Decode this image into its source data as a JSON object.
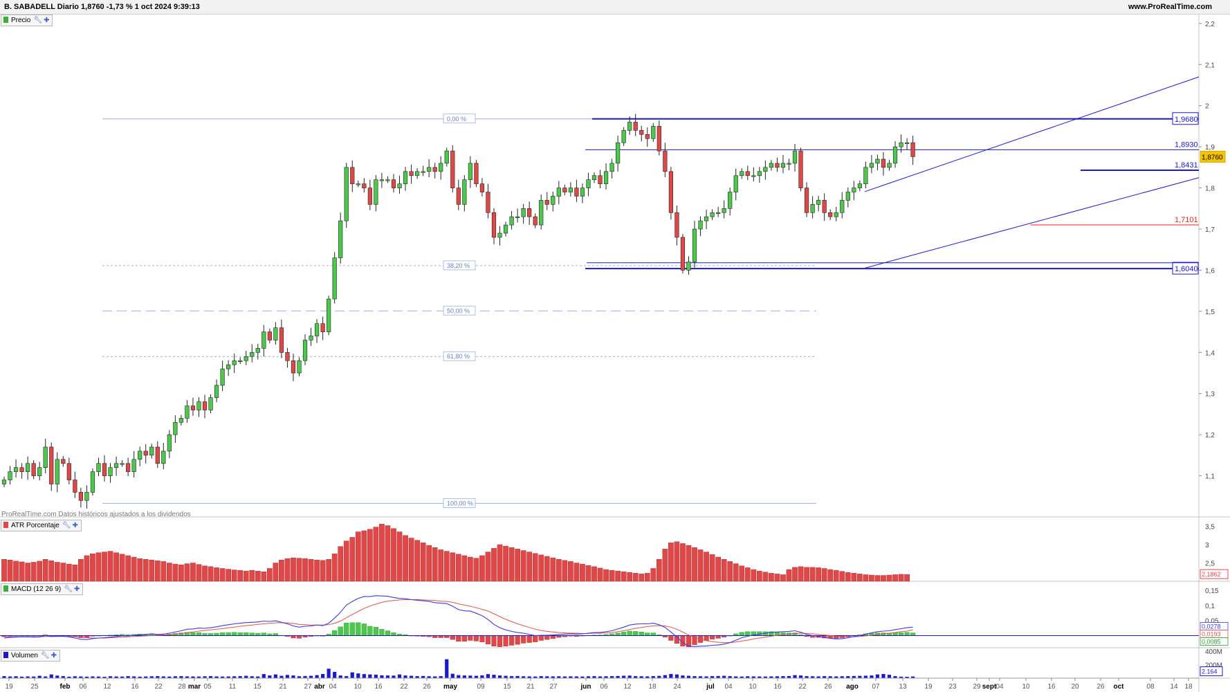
{
  "header": {
    "title": "B. SABADELL Diario 1,8760 -1,73 % 1 oct 2024 9:39:13",
    "site": "www.ProRealTime.com"
  },
  "panels": {
    "price_label": "Precio",
    "atr_label": "ATR Porcentaje",
    "macd_label": "MACD (12 26 9)",
    "volume_label": "Volumen"
  },
  "footnote": "ProRealTime.com  Datos históricos ajustados a los dividendos",
  "colors": {
    "up": "#4cc94c",
    "down": "#e04848",
    "line_blue": "#1a1acc",
    "level_red": "#ee2222",
    "fib": "#9ab0dd",
    "macd_line": "#3a3ae0",
    "signal_line": "#e05050",
    "volume": "#1a1acc"
  },
  "chart_data": [
    {
      "type": "candlestick",
      "title": "B. SABADELL Diario",
      "last": "1,8760",
      "ylim": [
        1.0,
        2.22
      ],
      "yticks": [
        "2,2",
        "2,1",
        "2",
        "1,9",
        "1,8",
        "1,7",
        "1,6",
        "1,5",
        "1,4",
        "1,3",
        "1,2",
        "1,1"
      ],
      "ytick_values": [
        2.2,
        2.1,
        2.0,
        1.9,
        1.8,
        1.7,
        1.6,
        1.5,
        1.4,
        1.3,
        1.2,
        1.1
      ],
      "xticks": [
        "19",
        "25",
        "feb",
        "06",
        "12",
        "16",
        "22",
        "28",
        "mar",
        "05",
        "11",
        "15",
        "21",
        "27",
        "abr",
        "04",
        "10",
        "16",
        "22",
        "26",
        "may",
        "09",
        "15",
        "21",
        "27",
        "jun",
        "06",
        "12",
        "18",
        "24",
        "jul",
        "04",
        "10",
        "16",
        "22",
        "26",
        "ago",
        "07",
        "13",
        "19",
        "23",
        "29",
        "sept",
        "04",
        "10",
        "16",
        "20",
        "26",
        "oct",
        "08",
        "14",
        "18"
      ],
      "close": [
        1.09,
        1.11,
        1.12,
        1.11,
        1.13,
        1.1,
        1.12,
        1.17,
        1.08,
        1.14,
        1.13,
        1.09,
        1.06,
        1.04,
        1.06,
        1.11,
        1.13,
        1.1,
        1.12,
        1.13,
        1.13,
        1.11,
        1.14,
        1.16,
        1.15,
        1.17,
        1.13,
        1.16,
        1.2,
        1.23,
        1.24,
        1.27,
        1.26,
        1.28,
        1.26,
        1.29,
        1.32,
        1.36,
        1.37,
        1.38,
        1.38,
        1.39,
        1.4,
        1.41,
        1.45,
        1.43,
        1.46,
        1.4,
        1.38,
        1.35,
        1.38,
        1.43,
        1.44,
        1.47,
        1.45,
        1.53,
        1.63,
        1.72,
        1.85,
        1.81,
        1.81,
        1.8,
        1.76,
        1.82,
        1.82,
        1.82,
        1.8,
        1.81,
        1.84,
        1.83,
        1.84,
        1.84,
        1.85,
        1.84,
        1.86,
        1.89,
        1.8,
        1.76,
        1.82,
        1.86,
        1.81,
        1.79,
        1.74,
        1.68,
        1.69,
        1.71,
        1.73,
        1.73,
        1.75,
        1.73,
        1.71,
        1.77,
        1.76,
        1.78,
        1.8,
        1.79,
        1.8,
        1.78,
        1.8,
        1.82,
        1.83,
        1.81,
        1.84,
        1.86,
        1.91,
        1.94,
        1.96,
        1.94,
        1.93,
        1.92,
        1.95,
        1.89,
        1.84,
        1.74,
        1.68,
        1.6,
        1.62,
        1.7,
        1.72,
        1.73,
        1.74,
        1.74,
        1.75,
        1.79,
        1.83,
        1.84,
        1.83,
        1.83,
        1.84,
        1.85,
        1.86,
        1.85,
        1.86,
        1.86,
        1.89,
        1.8,
        1.74,
        1.76,
        1.77,
        1.74,
        1.73,
        1.74,
        1.77,
        1.79,
        1.8,
        1.81,
        1.85,
        1.86,
        1.87,
        1.85,
        1.86,
        1.9,
        1.91,
        1.91,
        1.876
      ],
      "price_levels": [
        {
          "label": "1,9680",
          "value": 1.968
        },
        {
          "label": "1,8930",
          "value": 1.893
        },
        {
          "label": "1,8431",
          "value": 1.8431
        },
        {
          "label": "1,7101",
          "value": 1.7101
        },
        {
          "label": "1,6040",
          "value": 1.604
        }
      ],
      "fibonacci": [
        {
          "label": "0,00 %",
          "value": 1.968
        },
        {
          "label": "38,20 %",
          "value": 1.611
        },
        {
          "label": "50,00 %",
          "value": 1.501
        },
        {
          "label": "61,80 %",
          "value": 1.39
        },
        {
          "label": "100,00 %",
          "value": 1.033
        }
      ]
    },
    {
      "type": "bar",
      "title": "ATR Porcentaje",
      "last": "2,1862",
      "ylim": [
        2.0,
        3.7
      ],
      "yticks": [
        "3,5",
        "3",
        "2,5"
      ],
      "ytick_values": [
        3.5,
        3.0,
        2.5
      ],
      "values": [
        2.6,
        2.58,
        2.55,
        2.53,
        2.5,
        2.52,
        2.55,
        2.6,
        2.56,
        2.52,
        2.5,
        2.47,
        2.45,
        2.6,
        2.7,
        2.75,
        2.78,
        2.8,
        2.82,
        2.78,
        2.74,
        2.7,
        2.66,
        2.62,
        2.6,
        2.58,
        2.56,
        2.54,
        2.5,
        2.47,
        2.45,
        2.48,
        2.5,
        2.46,
        2.42,
        2.4,
        2.37,
        2.35,
        2.33,
        2.31,
        2.3,
        2.28,
        2.3,
        2.28,
        2.26,
        2.35,
        2.5,
        2.58,
        2.62,
        2.64,
        2.63,
        2.62,
        2.6,
        2.58,
        2.57,
        2.6,
        2.75,
        2.95,
        3.1,
        3.2,
        3.35,
        3.38,
        3.42,
        3.48,
        3.56,
        3.52,
        3.44,
        3.35,
        3.25,
        3.18,
        3.12,
        3.05,
        2.98,
        2.92,
        2.86,
        2.82,
        2.78,
        2.74,
        2.7,
        2.66,
        2.63,
        2.7,
        2.8,
        2.9,
        3.0,
        2.96,
        2.92,
        2.88,
        2.84,
        2.8,
        2.76,
        2.72,
        2.68,
        2.64,
        2.6,
        2.57,
        2.54,
        2.5,
        2.47,
        2.43,
        2.4,
        2.36,
        2.32,
        2.3,
        2.28,
        2.26,
        2.24,
        2.22,
        2.2,
        2.22,
        2.35,
        2.6,
        2.88,
        3.05,
        3.08,
        3.03,
        2.98,
        2.92,
        2.86,
        2.8,
        2.73,
        2.66,
        2.6,
        2.54,
        2.48,
        2.42,
        2.37,
        2.32,
        2.28,
        2.25,
        2.22,
        2.2,
        2.18,
        2.32,
        2.38,
        2.4,
        2.38,
        2.38,
        2.37,
        2.35,
        2.32,
        2.3,
        2.27,
        2.24,
        2.22,
        2.2,
        2.18,
        2.17,
        2.16,
        2.16,
        2.17,
        2.18,
        2.19,
        2.1862
      ]
    },
    {
      "type": "line",
      "title": "MACD (12 26 9)",
      "ylim": [
        -0.04,
        0.175
      ],
      "yticks": [
        "0,15",
        "0,1",
        "0,05"
      ],
      "ytick_values": [
        0.15,
        0.1,
        0.05
      ],
      "value_labels": [
        "0,0278",
        "0,0193",
        "0,0085"
      ],
      "series": [
        {
          "name": "MACD",
          "values": [
            -0.008,
            -0.006,
            -0.005,
            -0.004,
            -0.004,
            -0.005,
            -0.004,
            0.0,
            -0.003,
            -0.002,
            -0.002,
            -0.004,
            -0.008,
            -0.012,
            -0.013,
            -0.01,
            -0.008,
            -0.007,
            -0.005,
            -0.003,
            -0.001,
            -0.001,
            0.001,
            0.003,
            0.004,
            0.006,
            0.004,
            0.005,
            0.008,
            0.012,
            0.016,
            0.021,
            0.022,
            0.025,
            0.024,
            0.026,
            0.029,
            0.033,
            0.036,
            0.039,
            0.041,
            0.043,
            0.044,
            0.045,
            0.048,
            0.047,
            0.049,
            0.044,
            0.039,
            0.032,
            0.028,
            0.031,
            0.032,
            0.035,
            0.033,
            0.041,
            0.058,
            0.077,
            0.101,
            0.113,
            0.123,
            0.129,
            0.129,
            0.132,
            0.131,
            0.13,
            0.126,
            0.123,
            0.122,
            0.119,
            0.117,
            0.115,
            0.113,
            0.109,
            0.107,
            0.106,
            0.097,
            0.086,
            0.082,
            0.081,
            0.074,
            0.066,
            0.053,
            0.037,
            0.026,
            0.019,
            0.014,
            0.01,
            0.008,
            0.004,
            0.0,
            0.001,
            0.001,
            0.002,
            0.004,
            0.005,
            0.006,
            0.005,
            0.006,
            0.008,
            0.01,
            0.01,
            0.013,
            0.016,
            0.022,
            0.028,
            0.035,
            0.038,
            0.039,
            0.039,
            0.041,
            0.036,
            0.027,
            0.012,
            -0.005,
            -0.023,
            -0.035,
            -0.036,
            -0.035,
            -0.034,
            -0.032,
            -0.031,
            -0.028,
            -0.023,
            -0.015,
            -0.007,
            -0.002,
            0.002,
            0.005,
            0.008,
            0.011,
            0.012,
            0.013,
            0.014,
            0.016,
            0.011,
            0.004,
            0.0,
            -0.002,
            -0.006,
            -0.009,
            -0.011,
            -0.01,
            -0.007,
            -0.003,
            0.0,
            0.005,
            0.009,
            0.013,
            0.015,
            0.016,
            0.02,
            0.023,
            0.026,
            0.028
          ]
        },
        {
          "name": "Signal",
          "values": [
            -0.004,
            -0.004,
            -0.004,
            -0.004,
            -0.004,
            -0.004,
            -0.004,
            -0.003,
            -0.003,
            -0.003,
            -0.003,
            -0.003,
            -0.004,
            -0.005,
            -0.007,
            -0.008,
            -0.008,
            -0.008,
            -0.007,
            -0.006,
            -0.005,
            -0.004,
            -0.003,
            -0.002,
            -0.001,
            0.0,
            0.001,
            0.002,
            0.003,
            0.005,
            0.007,
            0.01,
            0.012,
            0.015,
            0.017,
            0.019,
            0.021,
            0.023,
            0.026,
            0.028,
            0.031,
            0.033,
            0.035,
            0.037,
            0.039,
            0.041,
            0.042,
            0.043,
            0.042,
            0.04,
            0.037,
            0.036,
            0.035,
            0.035,
            0.035,
            0.036,
            0.041,
            0.048,
            0.059,
            0.07,
            0.08,
            0.09,
            0.098,
            0.104,
            0.11,
            0.114,
            0.116,
            0.118,
            0.119,
            0.119,
            0.119,
            0.118,
            0.117,
            0.116,
            0.114,
            0.113,
            0.11,
            0.105,
            0.101,
            0.097,
            0.092,
            0.087,
            0.081,
            0.072,
            0.063,
            0.054,
            0.046,
            0.039,
            0.033,
            0.027,
            0.021,
            0.017,
            0.014,
            0.012,
            0.01,
            0.009,
            0.008,
            0.008,
            0.007,
            0.007,
            0.008,
            0.008,
            0.009,
            0.01,
            0.013,
            0.016,
            0.02,
            0.024,
            0.027,
            0.03,
            0.032,
            0.033,
            0.032,
            0.028,
            0.021,
            0.012,
            0.002,
            -0.006,
            -0.012,
            -0.017,
            -0.02,
            -0.022,
            -0.023,
            -0.023,
            -0.021,
            -0.018,
            -0.015,
            -0.011,
            -0.008,
            -0.005,
            -0.002,
            0.001,
            0.003,
            0.005,
            0.007,
            0.008,
            0.007,
            0.006,
            0.004,
            0.002,
            0.0,
            -0.002,
            -0.003,
            -0.004,
            -0.004,
            -0.003,
            -0.001,
            0.001,
            0.004,
            0.006,
            0.008,
            0.01,
            0.013,
            0.015,
            0.019
          ]
        }
      ]
    },
    {
      "type": "bar",
      "title": "Volumen",
      "last": "2.164",
      "ylim": [
        0,
        430
      ],
      "yticks": [
        "400M",
        "200M"
      ],
      "ytick_values": [
        400,
        200
      ],
      "values": [
        30,
        25,
        28,
        22,
        26,
        24,
        35,
        25,
        55,
        38,
        30,
        22,
        28,
        25,
        22,
        26,
        24,
        20,
        28,
        25,
        24,
        30,
        26,
        22,
        25,
        28,
        30,
        26,
        24,
        28,
        30,
        26,
        25,
        24,
        28,
        30,
        26,
        24,
        25,
        28,
        30,
        35,
        28,
        25,
        60,
        40,
        55,
        35,
        48,
        40,
        28,
        32,
        35,
        45,
        62,
        140,
        92,
        40,
        30,
        86,
        70,
        60,
        55,
        52,
        42,
        40,
        38,
        55,
        40,
        35,
        30,
        32,
        28,
        26,
        30,
        280,
        65,
        45,
        40,
        38,
        35,
        42,
        60,
        50,
        40,
        35,
        30,
        32,
        28,
        26,
        24,
        30,
        28,
        26,
        28,
        25,
        27,
        26,
        24,
        28,
        30,
        26,
        28,
        30,
        32,
        36,
        38,
        30,
        28,
        26,
        30,
        34,
        45,
        62,
        55,
        40,
        35,
        30,
        28,
        26,
        30,
        32,
        35,
        30,
        26,
        24,
        28,
        26,
        25,
        24,
        26,
        28,
        30,
        32,
        45,
        40,
        30,
        28,
        26,
        30,
        28,
        26,
        28,
        30,
        32,
        34,
        36,
        40,
        55,
        62,
        50,
        30,
        22,
        20,
        25
      ]
    }
  ]
}
